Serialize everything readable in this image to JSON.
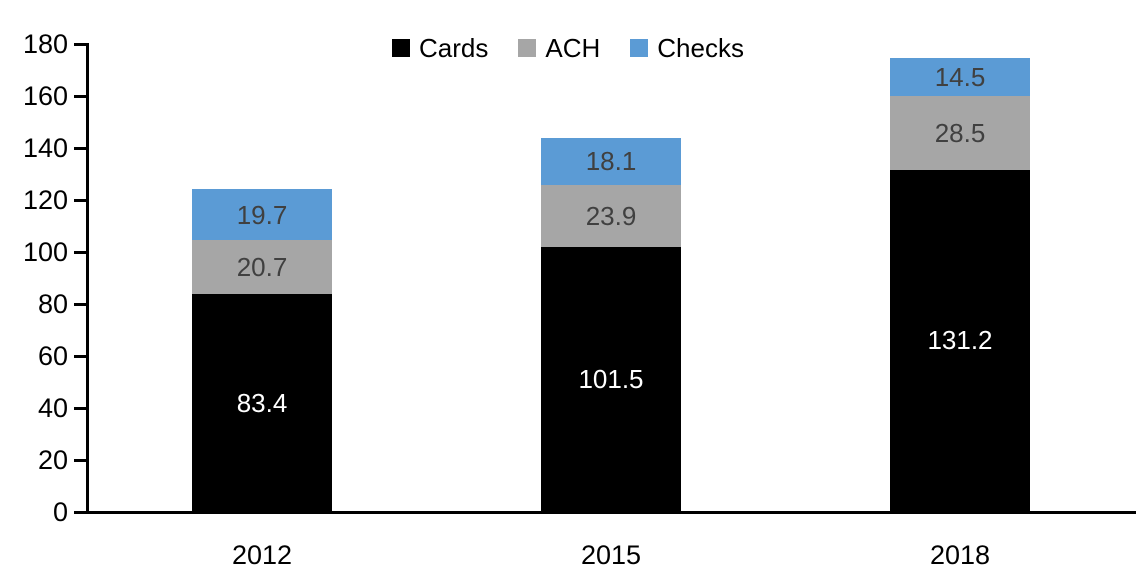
{
  "chart_data": {
    "type": "bar",
    "stacked": true,
    "title": "",
    "categories": [
      "2012",
      "2015",
      "2018"
    ],
    "series": [
      {
        "name": "Cards",
        "color": "#000000",
        "label_color": "#ffffff",
        "values": [
          83.4,
          101.5,
          131.2
        ]
      },
      {
        "name": "ACH",
        "color": "#a6a6a6",
        "label_color": "#404040",
        "values": [
          20.7,
          23.9,
          28.5
        ]
      },
      {
        "name": "Checks",
        "color": "#5b9bd5",
        "label_color": "#404040",
        "values": [
          19.7,
          18.1,
          14.5
        ]
      }
    ],
    "ylim": [
      0,
      180
    ],
    "yticks": [
      "0",
      "20",
      "40",
      "60",
      "80",
      "100",
      "120",
      "140",
      "160",
      "180"
    ],
    "legend_position": "top",
    "grid": false,
    "value_label_decimals": 1
  }
}
